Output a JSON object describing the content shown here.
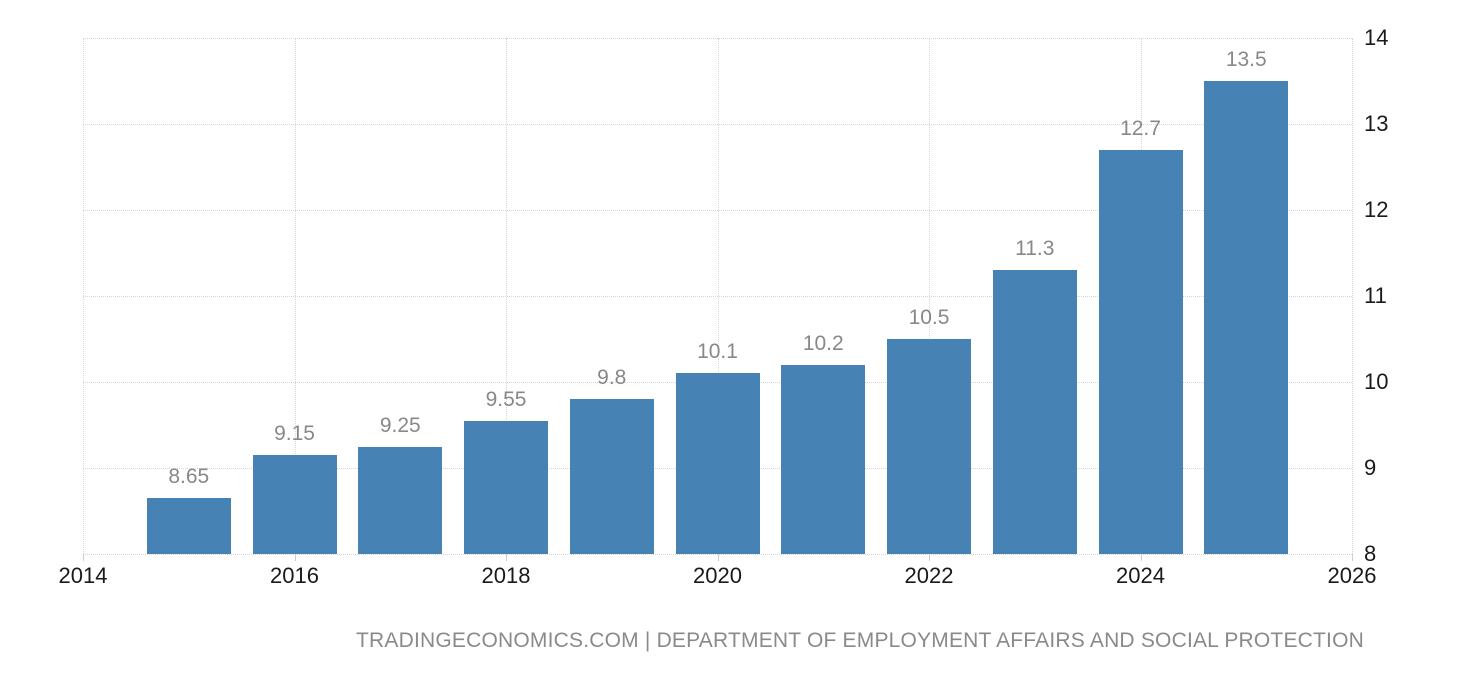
{
  "chart_data": {
    "type": "bar",
    "title": "",
    "xlabel": "",
    "ylabel": "",
    "categories": [
      2015,
      2016,
      2017,
      2018,
      2019,
      2020,
      2021,
      2022,
      2023,
      2024,
      2025
    ],
    "values": [
      8.65,
      9.15,
      9.25,
      9.55,
      9.8,
      10.1,
      10.2,
      10.5,
      11.3,
      12.7,
      13.5
    ],
    "bar_labels": [
      "8.65",
      "9.15",
      "9.25",
      "9.55",
      "9.8",
      "10.1",
      "10.2",
      "10.5",
      "11.3",
      "12.7",
      "13.5"
    ],
    "x_tick_labels": [
      "2014",
      "2016",
      "2018",
      "2020",
      "2022",
      "2024",
      "2026"
    ],
    "x_tick_values": [
      2014,
      2016,
      2018,
      2020,
      2022,
      2024,
      2026
    ],
    "y_tick_labels": [
      "8",
      "9",
      "10",
      "11",
      "12",
      "13",
      "14"
    ],
    "y_tick_values": [
      8,
      9,
      10,
      11,
      12,
      13,
      14
    ],
    "xlim": [
      2014,
      2026
    ],
    "ylim": [
      8,
      14
    ],
    "grid": true,
    "legend": "none",
    "y_axis_position": "right",
    "colors": {
      "bar": "#4682B4",
      "bar_value_label": "#888888",
      "axis_label": "#1a1a1a",
      "gridline": "#d6d6d6",
      "tick": "#cccccc"
    }
  },
  "attribution": {
    "text": "TRADINGECONOMICS.COM | DEPARTMENT OF EMPLOYMENT AFFAIRS AND SOCIAL PROTECTION"
  }
}
